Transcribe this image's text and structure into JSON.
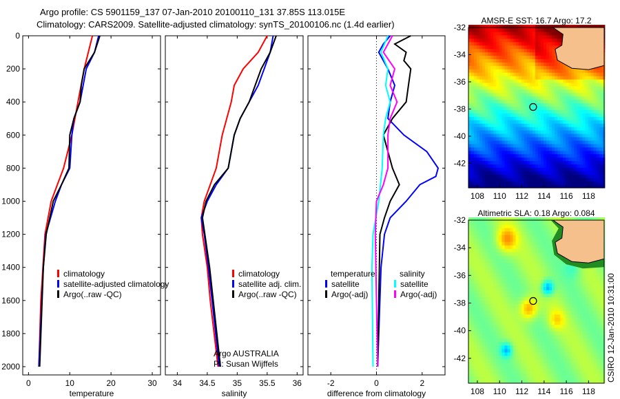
{
  "title_line1": "Argo profile: CS 5901159_137 07-Jan-2010 20100110_131 37.85S 113.015E",
  "title_line2": "Climatology: CARS2009. Satellite-adjusted climatology: synTS_20100106.nc (1.4d earlier)",
  "side_label": "CSIRO 12-Jan-2010 10:31:00",
  "colors": {
    "climatology": "#ff0000",
    "satellite": "#0000ff",
    "argo": "#000000",
    "sal_satellite": "#00ffff",
    "sal_argo": "#ff00ff",
    "land": "#f5c08c"
  },
  "chart_data": [
    {
      "type": "line",
      "xlabel": "temperature",
      "ylabel": "",
      "xlim": [
        -1.4,
        32
      ],
      "ylim": [
        2050,
        0
      ],
      "xticks": [
        "0",
        "10",
        "20",
        "30"
      ],
      "xtick_values": [
        0,
        10,
        20,
        30
      ],
      "yticks": [
        "0",
        "200",
        "400",
        "600",
        "800",
        "1000",
        "1200",
        "1400",
        "1600",
        "1800",
        "2000"
      ],
      "legend": {
        "placement": "lower-left",
        "entries": [
          "climatology",
          "satellite-adjusted climatology",
          "Argo(..raw -QC)"
        ]
      },
      "series": [
        {
          "name": "climatology",
          "color": "#ff0000",
          "depth": [
            0,
            100,
            200,
            400,
            600,
            800,
            900,
            1000,
            1200,
            1400,
            1600,
            2000
          ],
          "values": [
            15.5,
            14.5,
            13.5,
            12,
            10.5,
            8.5,
            7,
            5.5,
            4,
            3.5,
            3,
            2.5
          ]
        },
        {
          "name": "satellite-adjusted climatology",
          "color": "#0000ff",
          "depth": [
            0,
            100,
            200,
            400,
            500,
            600,
            800,
            900,
            1000,
            1200,
            1400,
            2000
          ],
          "values": [
            17,
            16,
            14,
            12.5,
            11,
            10.5,
            10,
            8,
            6.5,
            4.2,
            3.6,
            2.5
          ]
        },
        {
          "name": "Argo(..raw -QC)",
          "color": "#000000",
          "depth": [
            0,
            100,
            200,
            300,
            400,
            500,
            600,
            800,
            900,
            1000,
            1200,
            1400,
            2000
          ],
          "values": [
            17.3,
            16,
            13.5,
            12.8,
            12.5,
            11,
            10,
            9.8,
            8,
            6,
            4.3,
            3.6,
            2.7
          ]
        }
      ]
    },
    {
      "type": "line",
      "xlabel": "salinity",
      "ylabel": "",
      "xlim": [
        33.8,
        36.1
      ],
      "ylim": [
        2050,
        0
      ],
      "xticks": [
        "34",
        "34.5",
        "35",
        "35.5",
        "36"
      ],
      "xtick_values": [
        34,
        34.5,
        35,
        35.5,
        36
      ],
      "legend": {
        "placement": "lower-center",
        "entries": [
          "climatology",
          "satellite adj. clim.",
          "Argo(..raw -QC)"
        ]
      },
      "annotation": [
        "Argo AUSTRALIA",
        "PI: Susan Wijffels"
      ],
      "series": [
        {
          "name": "climatology",
          "color": "#ff0000",
          "depth": [
            0,
            100,
            200,
            300,
            400,
            600,
            800,
            1000,
            1100,
            1200,
            1400,
            1600,
            2000
          ],
          "values": [
            35.5,
            35.35,
            35.1,
            34.95,
            34.9,
            34.75,
            34.65,
            34.45,
            34.4,
            34.42,
            34.5,
            34.55,
            34.68
          ]
        },
        {
          "name": "satellite adj. clim.",
          "color": "#0000ff",
          "depth": [
            0,
            100,
            200,
            300,
            400,
            500,
            600,
            800,
            900,
            1000,
            1100,
            1200,
            1400,
            2000
          ],
          "values": [
            35.6,
            35.55,
            35.45,
            35.35,
            35.2,
            35.05,
            34.95,
            34.85,
            34.65,
            34.5,
            34.4,
            34.45,
            34.52,
            34.7
          ]
        },
        {
          "name": "Argo(..raw -QC)",
          "color": "#000000",
          "depth": [
            0,
            100,
            200,
            300,
            400,
            500,
            600,
            800,
            900,
            1000,
            1100,
            1200,
            1400,
            2000
          ],
          "values": [
            35.65,
            35.55,
            35.4,
            35.3,
            35.2,
            35.05,
            34.95,
            34.85,
            34.62,
            34.48,
            34.42,
            34.46,
            34.54,
            34.72
          ]
        }
      ]
    },
    {
      "type": "line",
      "xlabel": "difference from climatology",
      "ylabel": "",
      "xlim": [
        -3,
        3
      ],
      "ylim": [
        2050,
        0
      ],
      "xticks": [
        "-2",
        "0",
        "2"
      ],
      "xtick_values": [
        -2,
        0,
        2
      ],
      "legend": {
        "placement": "lower-center",
        "headers": [
          "temperature",
          "salinity"
        ],
        "entries": [
          "satellite",
          "Argo(-adj)",
          "satellite",
          "Argo(-adj)"
        ]
      },
      "series": [
        {
          "name": "temperature satellite",
          "color": "#0000ff",
          "depth": [
            0,
            50,
            100,
            200,
            300,
            400,
            500,
            600,
            700,
            800,
            850,
            900,
            1000,
            1100,
            1200,
            1400,
            2000
          ],
          "values": [
            0.6,
            0.3,
            0.1,
            0.5,
            0.8,
            0.6,
            0.5,
            1.2,
            2.2,
            2.7,
            2.6,
            1.9,
            1.3,
            0.6,
            0.35,
            0.2,
            0.05
          ]
        },
        {
          "name": "temperature Argo(-adj)",
          "color": "#000000",
          "depth": [
            0,
            50,
            100,
            150,
            200,
            300,
            400,
            500,
            600,
            800,
            900,
            1000,
            1100,
            1200,
            2000
          ],
          "values": [
            1.5,
            0.8,
            1.3,
            1.2,
            1.5,
            1.4,
            1.3,
            0.7,
            0.3,
            0.7,
            1.0,
            0.6,
            0.35,
            0.15,
            0.05
          ]
        },
        {
          "name": "salinity satellite",
          "color": "#00ffff",
          "depth": [
            0,
            100,
            200,
            300,
            400,
            500,
            600,
            800,
            1000,
            1200,
            1400,
            2000
          ],
          "values": [
            0.5,
            0.2,
            0.5,
            0.4,
            0.6,
            0.4,
            0.3,
            0.25,
            0.1,
            -0.15,
            -0.2,
            -0.15
          ]
        },
        {
          "name": "salinity Argo(-adj)",
          "color": "#ff00ff",
          "depth": [
            0,
            100,
            200,
            300,
            400,
            500,
            600,
            800,
            900,
            1000,
            1200,
            2000
          ],
          "values": [
            0.7,
            0.3,
            0.8,
            0.6,
            0.9,
            0.6,
            0.5,
            0.5,
            0.3,
            0.0,
            -0.05,
            0.05
          ]
        }
      ]
    },
    {
      "type": "heatmap",
      "title": "AMSR-E SST: 16.7 Argo: 17.2",
      "xlim": [
        107.2,
        119.4
      ],
      "ylim": [
        -43.8,
        -32
      ],
      "xticks": [
        "108",
        "110",
        "112",
        "114",
        "116",
        "118"
      ],
      "xtick_values": [
        108,
        110,
        112,
        114,
        116,
        118
      ],
      "yticks": [
        "-32",
        "-34",
        "-36",
        "-38",
        "-40",
        "-42"
      ],
      "ytick_values": [
        -32,
        -34,
        -36,
        -38,
        -40,
        -42
      ],
      "marker": {
        "lon": 113.015,
        "lat": -37.85
      }
    },
    {
      "type": "heatmap",
      "title": "Altimetric SLA: 0.18 Argo: 0.084",
      "xlim": [
        107.2,
        119.4
      ],
      "ylim": [
        -43.8,
        -32
      ],
      "xticks": [
        "108",
        "110",
        "112",
        "114",
        "116",
        "118"
      ],
      "xtick_values": [
        108,
        110,
        112,
        114,
        116,
        118
      ],
      "yticks": [
        "-32",
        "-34",
        "-36",
        "-38",
        "-40",
        "-42"
      ],
      "ytick_values": [
        -32,
        -34,
        -36,
        -38,
        -40,
        -42
      ],
      "marker": {
        "lon": 113.015,
        "lat": -37.85
      }
    }
  ]
}
